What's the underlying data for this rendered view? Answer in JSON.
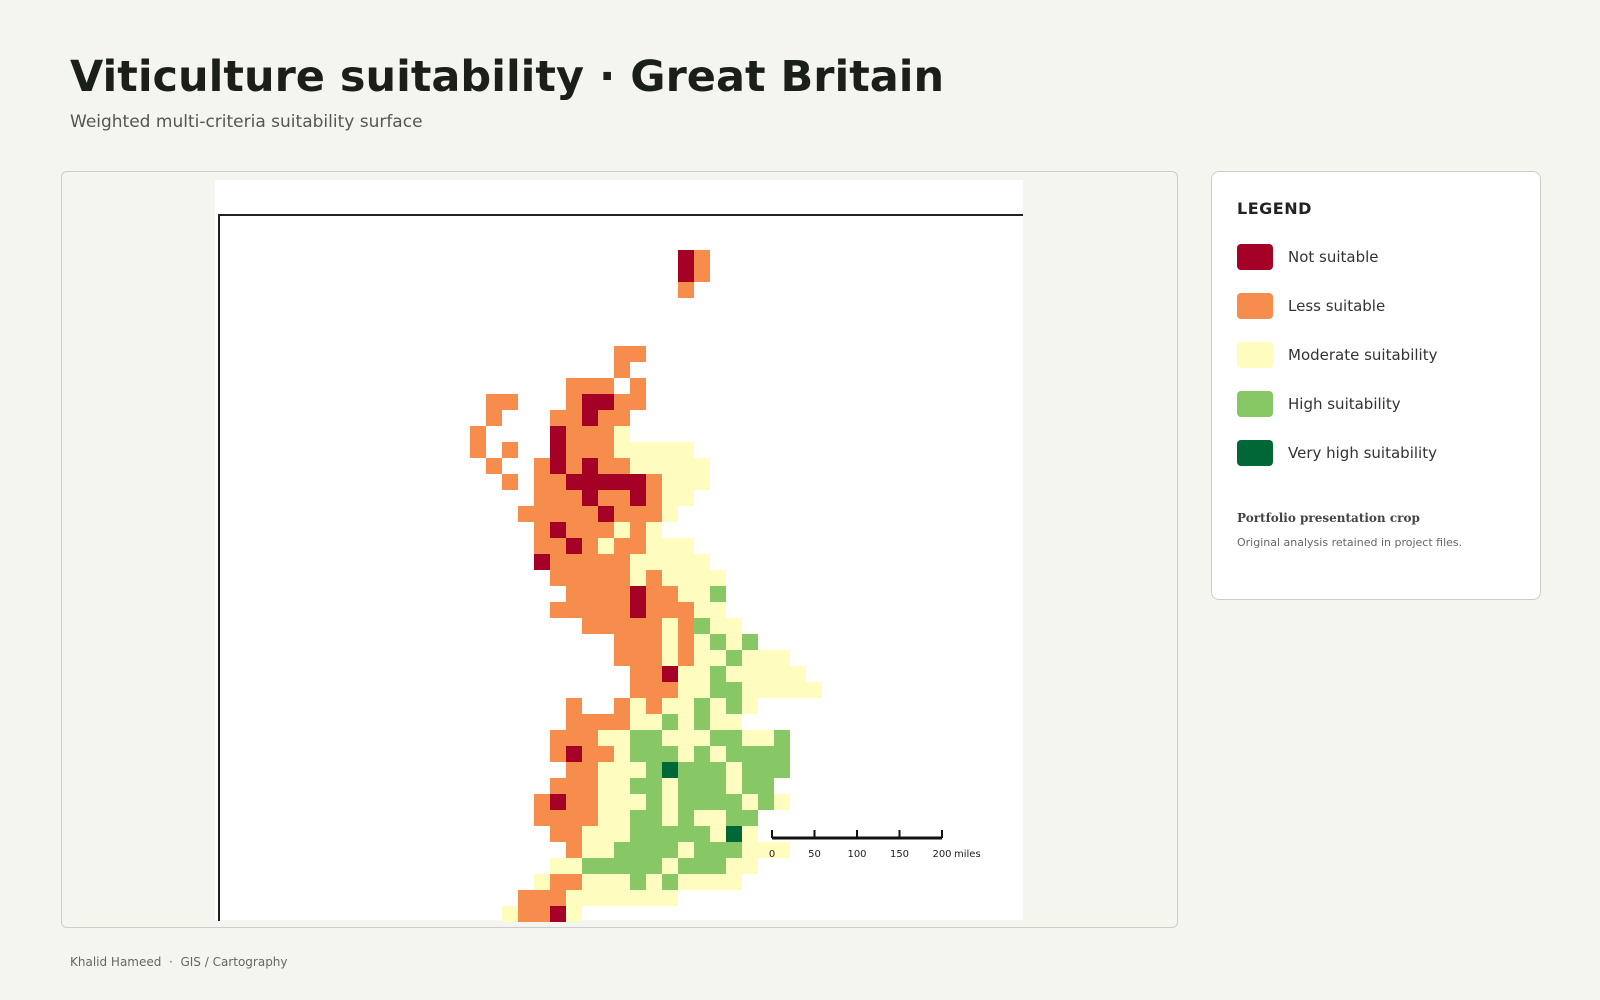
{
  "header": {
    "title": "Viticulture suitability · Great Britain",
    "subtitle": "Weighted multi-criteria suitability surface"
  },
  "legend": {
    "title": "LEGEND",
    "items": [
      {
        "label": "Not suitable",
        "color": "#a50026"
      },
      {
        "label": "Less suitable",
        "color": "#f68d4c"
      },
      {
        "label": "Moderate suitability",
        "color": "#fefcbf"
      },
      {
        "label": "High suitability",
        "color": "#88c766"
      },
      {
        "label": "Very high suitability",
        "color": "#006837"
      }
    ],
    "note_title": "Portfolio presentation crop",
    "note_text": "Original analysis retained in project files."
  },
  "scale_bar": {
    "ticks": [
      0,
      50,
      100,
      150,
      200
    ],
    "unit": "miles"
  },
  "footer": {
    "text": "Khalid Hameed  ·  GIS / Cartography"
  }
}
